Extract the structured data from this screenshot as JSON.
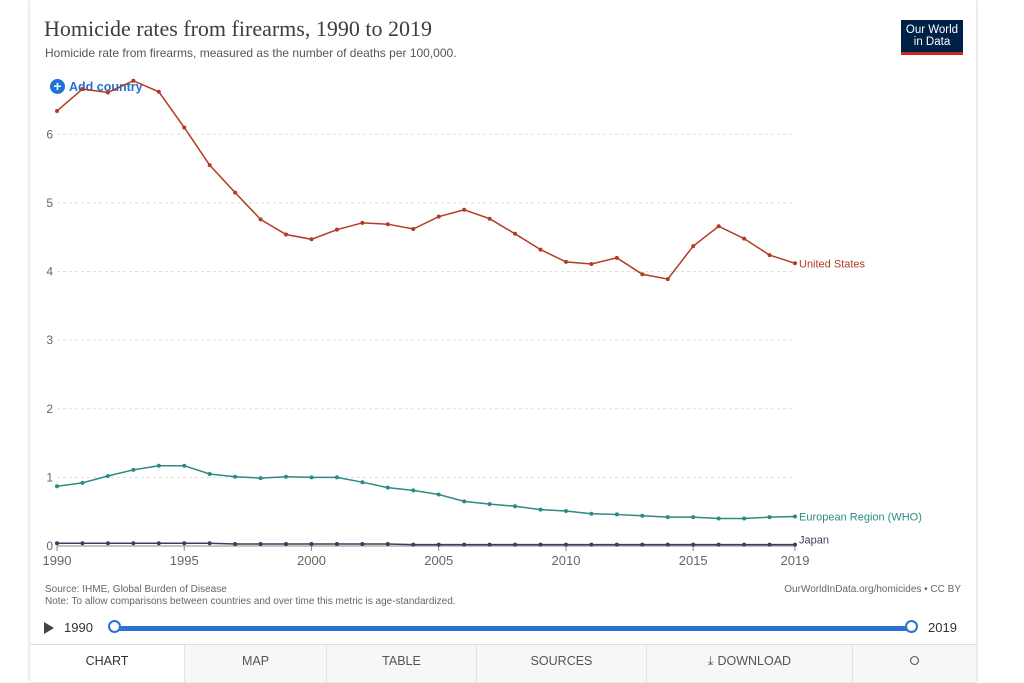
{
  "header": {
    "title": "Homicide rates from firearms, 1990 to 2019",
    "subtitle": "Homicide rate from firearms, measured as the number of deaths per 100,000.",
    "logo_line1": "Our World",
    "logo_line2": "in Data"
  },
  "add_country_label": "Add country",
  "chart_data": {
    "type": "line",
    "title": "Homicide rates from firearms, 1990 to 2019",
    "subtitle": "Homicide rate from firearms, measured as the number of deaths per 100,000.",
    "x": [
      1990,
      1991,
      1992,
      1993,
      1994,
      1995,
      1996,
      1997,
      1998,
      1999,
      2000,
      2001,
      2002,
      2003,
      2004,
      2005,
      2006,
      2007,
      2008,
      2009,
      2010,
      2011,
      2012,
      2013,
      2014,
      2015,
      2016,
      2017,
      2018,
      2019
    ],
    "ylim": [
      0,
      6.5
    ],
    "y_ticks": [
      0,
      1,
      2,
      3,
      4,
      5,
      6
    ],
    "x_ticks": [
      1990,
      1995,
      2000,
      2005,
      2010,
      2015,
      2019
    ],
    "grid": "horizontal dashed",
    "legend": "labels at line ends (right)",
    "series": [
      {
        "name": "United States",
        "color": "#b13c23",
        "values": [
          6.34,
          6.66,
          6.61,
          6.78,
          6.62,
          6.1,
          5.55,
          5.15,
          4.76,
          4.54,
          4.47,
          4.61,
          4.71,
          4.69,
          4.62,
          4.8,
          4.9,
          4.77,
          4.55,
          4.32,
          4.14,
          4.11,
          4.2,
          3.96,
          3.89,
          4.37,
          4.66,
          4.48,
          4.24,
          4.12
        ]
      },
      {
        "name": "European Region (WHO)",
        "color": "#2d8a80",
        "values": [
          0.87,
          0.92,
          1.02,
          1.11,
          1.17,
          1.17,
          1.05,
          1.01,
          0.99,
          1.01,
          1.0,
          1.0,
          0.93,
          0.85,
          0.81,
          0.75,
          0.65,
          0.61,
          0.58,
          0.53,
          0.51,
          0.47,
          0.46,
          0.44,
          0.42,
          0.42,
          0.4,
          0.4,
          0.42,
          0.43
        ]
      },
      {
        "name": "Japan",
        "color": "#3d3d5c",
        "values": [
          0.04,
          0.04,
          0.04,
          0.04,
          0.04,
          0.04,
          0.04,
          0.03,
          0.03,
          0.03,
          0.03,
          0.03,
          0.03,
          0.03,
          0.02,
          0.02,
          0.02,
          0.02,
          0.02,
          0.02,
          0.02,
          0.02,
          0.02,
          0.02,
          0.02,
          0.02,
          0.02,
          0.02,
          0.02,
          0.02
        ]
      }
    ]
  },
  "footer": {
    "source": "Source: IHME, Global Burden of Disease",
    "note": "Note: To allow comparisons between countries and over time this metric is age-standardized.",
    "credit": "OurWorldInData.org/homicides • CC BY"
  },
  "timeline": {
    "start": "1990",
    "end": "2019"
  },
  "tabs": {
    "chart": "CHART",
    "map": "MAP",
    "table": "TABLE",
    "sources": "SOURCES",
    "download": "DOWNLOAD"
  },
  "colors": {
    "accent": "#2d72d2",
    "logo_bg": "#002147",
    "logo_underline": "#ce261e"
  }
}
